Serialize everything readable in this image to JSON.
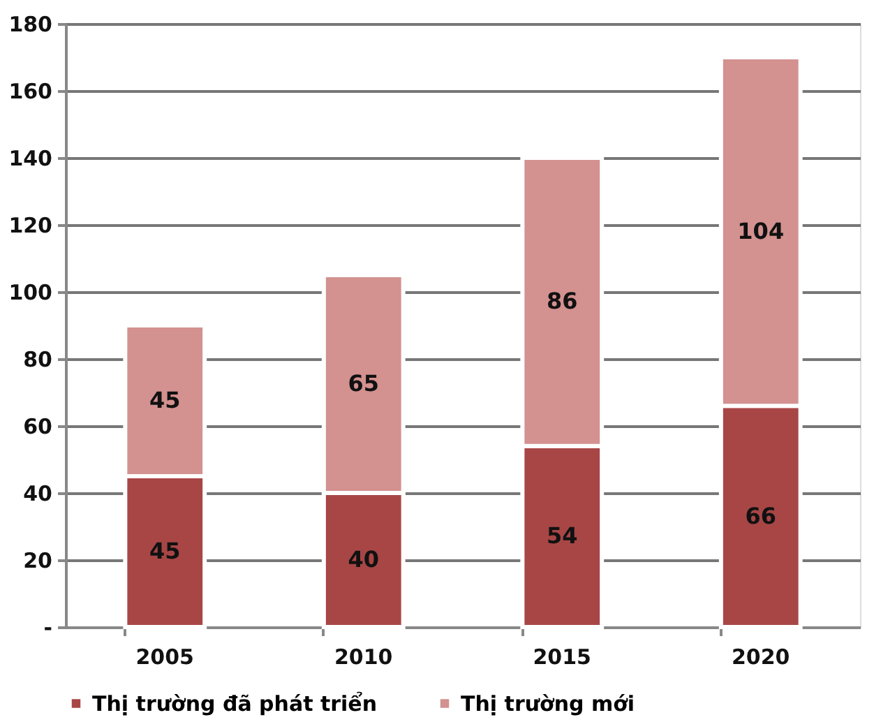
{
  "chart_data": {
    "type": "bar",
    "stacked": true,
    "categories": [
      "2005",
      "2010",
      "2015",
      "2020"
    ],
    "series": [
      {
        "name": "Thị trường đã phát triển",
        "color": "#a84646",
        "values": [
          45,
          40,
          54,
          66
        ]
      },
      {
        "name": "Thị trường mới",
        "color": "#d39190",
        "values": [
          45,
          65,
          86,
          104
        ]
      }
    ],
    "ylim": [
      0,
      180
    ],
    "yticks": [
      {
        "value": 0,
        "label": "-"
      },
      20,
      40,
      60,
      80,
      100,
      120,
      140,
      160,
      180
    ],
    "grid": "y",
    "legend": "bottom",
    "data_labels": true
  }
}
